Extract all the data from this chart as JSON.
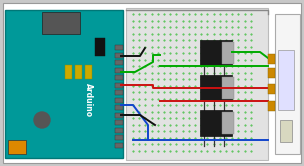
{
  "bg_outer": "#c8c8c8",
  "bg_inner": "#ffffff",
  "arduino_color": "#009999",
  "arduino_dark": "#007777",
  "breadboard_color": "#e2e2e2",
  "breadboard_border": "#bbbbbb",
  "transistor_color": "#1a1a1a",
  "transistor_silver": "#aaaaaa",
  "dot_color": "#33bb33",
  "wire_black": "#111111",
  "wire_green": "#00aa00",
  "wire_red": "#cc1111",
  "wire_blue": "#1144cc",
  "led_strip_bg": "#f0f0f0",
  "led_strip_border": "#aaaaaa",
  "connector_color": "#cc8800",
  "led_component": "#ccccff",
  "usb_color": "#555555",
  "jack_color": "#dd8800",
  "pin_color": "#666666",
  "yellow_comp": "#ccaa00",
  "button_color": "#555555"
}
